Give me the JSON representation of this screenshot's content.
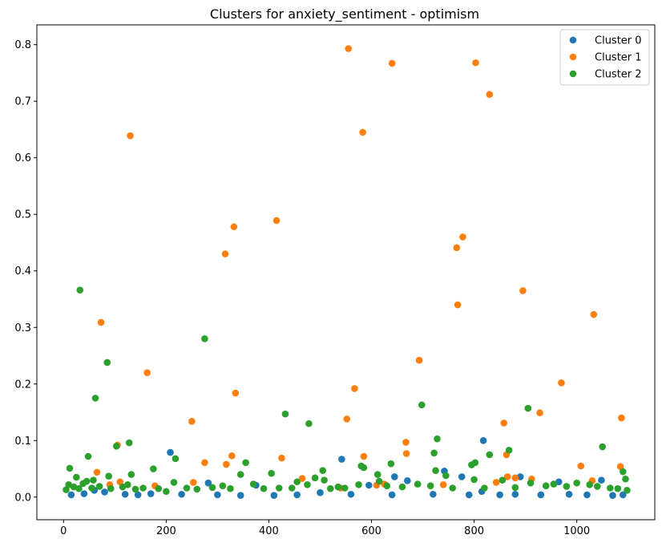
{
  "chart_data": {
    "type": "scatter",
    "title": "Clusters for anxiety_sentiment - optimism",
    "xlabel": "",
    "ylabel": "",
    "xlim": [
      -52,
      1152
    ],
    "ylim": [
      -0.04,
      0.835
    ],
    "x_ticks": [
      "0",
      "200",
      "400",
      "600",
      "800",
      "1000"
    ],
    "y_ticks": [
      "0.0",
      "0.1",
      "0.2",
      "0.3",
      "0.4",
      "0.5",
      "0.6",
      "0.7",
      "0.8"
    ],
    "grid": false,
    "legend_position": "top-right",
    "series": [
      {
        "name": "Cluster 0",
        "color": "#1f77b4",
        "points": [
          [
            15,
            0.004
          ],
          [
            40,
            0.006
          ],
          [
            60,
            0.012
          ],
          [
            80,
            0.009
          ],
          [
            120,
            0.005
          ],
          [
            145,
            0.004
          ],
          [
            170,
            0.006
          ],
          [
            208,
            0.079
          ],
          [
            230,
            0.005
          ],
          [
            282,
            0.025
          ],
          [
            300,
            0.004
          ],
          [
            345,
            0.003
          ],
          [
            375,
            0.021
          ],
          [
            410,
            0.003
          ],
          [
            455,
            0.004
          ],
          [
            500,
            0.008
          ],
          [
            542,
            0.067
          ],
          [
            560,
            0.005
          ],
          [
            595,
            0.021
          ],
          [
            640,
            0.004
          ],
          [
            645,
            0.036
          ],
          [
            670,
            0.029
          ],
          [
            720,
            0.005
          ],
          [
            742,
            0.046
          ],
          [
            776,
            0.036
          ],
          [
            790,
            0.004
          ],
          [
            815,
            0.01
          ],
          [
            818,
            0.1
          ],
          [
            850,
            0.004
          ],
          [
            880,
            0.005
          ],
          [
            890,
            0.036
          ],
          [
            930,
            0.004
          ],
          [
            965,
            0.027
          ],
          [
            985,
            0.005
          ],
          [
            1020,
            0.004
          ],
          [
            1048,
            0.03
          ],
          [
            1070,
            0.003
          ],
          [
            1090,
            0.004
          ]
        ]
      },
      {
        "name": "Cluster 1",
        "color": "#ff7f0e",
        "points": [
          [
            65,
            0.044
          ],
          [
            73,
            0.309
          ],
          [
            90,
            0.022
          ],
          [
            105,
            0.092
          ],
          [
            110,
            0.027
          ],
          [
            130,
            0.639
          ],
          [
            163,
            0.22
          ],
          [
            178,
            0.02
          ],
          [
            250,
            0.134
          ],
          [
            253,
            0.026
          ],
          [
            275,
            0.061
          ],
          [
            315,
            0.43
          ],
          [
            317,
            0.058
          ],
          [
            328,
            0.073
          ],
          [
            332,
            0.478
          ],
          [
            335,
            0.184
          ],
          [
            415,
            0.489
          ],
          [
            425,
            0.069
          ],
          [
            465,
            0.033
          ],
          [
            540,
            0.016
          ],
          [
            552,
            0.138
          ],
          [
            555,
            0.793
          ],
          [
            567,
            0.192
          ],
          [
            583,
            0.645
          ],
          [
            585,
            0.072
          ],
          [
            610,
            0.021
          ],
          [
            625,
            0.023
          ],
          [
            640,
            0.767
          ],
          [
            667,
            0.097
          ],
          [
            668,
            0.077
          ],
          [
            693,
            0.242
          ],
          [
            740,
            0.022
          ],
          [
            766,
            0.441
          ],
          [
            768,
            0.34
          ],
          [
            778,
            0.46
          ],
          [
            803,
            0.768
          ],
          [
            830,
            0.712
          ],
          [
            843,
            0.026
          ],
          [
            858,
            0.131
          ],
          [
            863,
            0.075
          ],
          [
            865,
            0.036
          ],
          [
            880,
            0.034
          ],
          [
            895,
            0.365
          ],
          [
            912,
            0.032
          ],
          [
            928,
            0.149
          ],
          [
            970,
            0.202
          ],
          [
            1008,
            0.055
          ],
          [
            1030,
            0.029
          ],
          [
            1033,
            0.323
          ],
          [
            1085,
            0.054
          ],
          [
            1087,
            0.14
          ]
        ]
      },
      {
        "name": "Cluster 2",
        "color": "#2ca02c",
        "points": [
          [
            5,
            0.013
          ],
          [
            10,
            0.022
          ],
          [
            12,
            0.051
          ],
          [
            20,
            0.018
          ],
          [
            25,
            0.035
          ],
          [
            30,
            0.015
          ],
          [
            32,
            0.366
          ],
          [
            38,
            0.024
          ],
          [
            45,
            0.028
          ],
          [
            48,
            0.072
          ],
          [
            55,
            0.016
          ],
          [
            58,
            0.03
          ],
          [
            62,
            0.175
          ],
          [
            70,
            0.019
          ],
          [
            85,
            0.238
          ],
          [
            88,
            0.037
          ],
          [
            92,
            0.015
          ],
          [
            103,
            0.09
          ],
          [
            115,
            0.018
          ],
          [
            125,
            0.022
          ],
          [
            128,
            0.096
          ],
          [
            132,
            0.04
          ],
          [
            140,
            0.014
          ],
          [
            155,
            0.016
          ],
          [
            175,
            0.05
          ],
          [
            185,
            0.015
          ],
          [
            200,
            0.01
          ],
          [
            215,
            0.026
          ],
          [
            218,
            0.068
          ],
          [
            240,
            0.016
          ],
          [
            260,
            0.014
          ],
          [
            275,
            0.28
          ],
          [
            290,
            0.017
          ],
          [
            310,
            0.02
          ],
          [
            325,
            0.015
          ],
          [
            345,
            0.04
          ],
          [
            355,
            0.061
          ],
          [
            370,
            0.023
          ],
          [
            390,
            0.015
          ],
          [
            405,
            0.042
          ],
          [
            420,
            0.016
          ],
          [
            432,
            0.147
          ],
          [
            445,
            0.016
          ],
          [
            455,
            0.027
          ],
          [
            475,
            0.022
          ],
          [
            478,
            0.13
          ],
          [
            490,
            0.034
          ],
          [
            505,
            0.047
          ],
          [
            508,
            0.03
          ],
          [
            520,
            0.015
          ],
          [
            535,
            0.018
          ],
          [
            548,
            0.016
          ],
          [
            575,
            0.022
          ],
          [
            580,
            0.055
          ],
          [
            585,
            0.052
          ],
          [
            612,
            0.04
          ],
          [
            615,
            0.028
          ],
          [
            630,
            0.02
          ],
          [
            638,
            0.059
          ],
          [
            660,
            0.018
          ],
          [
            690,
            0.023
          ],
          [
            698,
            0.163
          ],
          [
            715,
            0.02
          ],
          [
            722,
            0.078
          ],
          [
            725,
            0.047
          ],
          [
            728,
            0.103
          ],
          [
            745,
            0.038
          ],
          [
            758,
            0.016
          ],
          [
            795,
            0.057
          ],
          [
            800,
            0.031
          ],
          [
            802,
            0.061
          ],
          [
            820,
            0.016
          ],
          [
            830,
            0.075
          ],
          [
            855,
            0.03
          ],
          [
            868,
            0.083
          ],
          [
            880,
            0.017
          ],
          [
            905,
            0.157
          ],
          [
            910,
            0.025
          ],
          [
            940,
            0.02
          ],
          [
            955,
            0.023
          ],
          [
            980,
            0.019
          ],
          [
            1000,
            0.025
          ],
          [
            1025,
            0.022
          ],
          [
            1040,
            0.019
          ],
          [
            1050,
            0.089
          ],
          [
            1065,
            0.016
          ],
          [
            1080,
            0.015
          ],
          [
            1090,
            0.045
          ],
          [
            1095,
            0.032
          ],
          [
            1098,
            0.012
          ]
        ]
      }
    ]
  }
}
